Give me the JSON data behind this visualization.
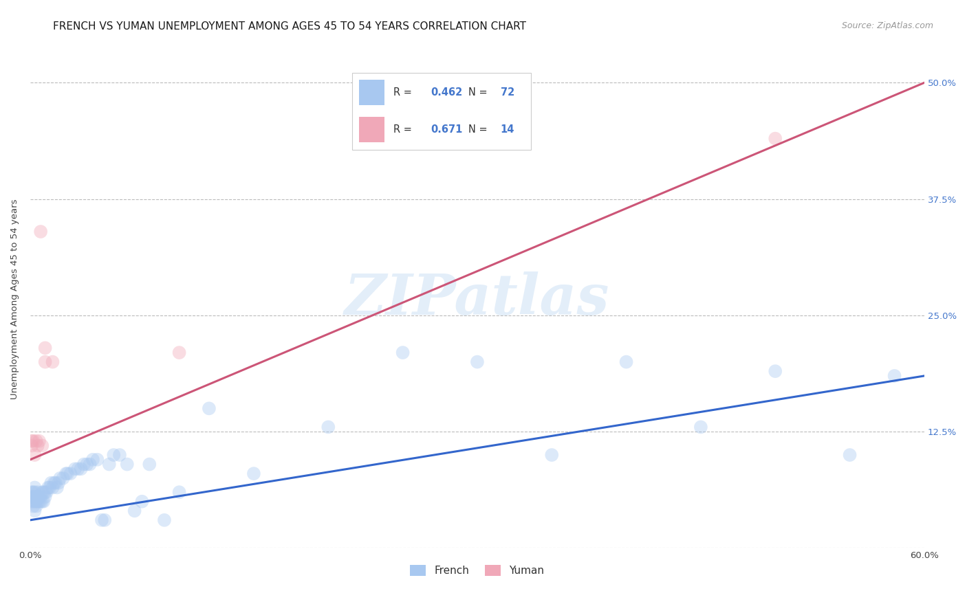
{
  "title": "FRENCH VS YUMAN UNEMPLOYMENT AMONG AGES 45 TO 54 YEARS CORRELATION CHART",
  "source": "Source: ZipAtlas.com",
  "ylabel": "Unemployment Among Ages 45 to 54 years",
  "xlim": [
    0.0,
    0.6
  ],
  "ylim": [
    0.0,
    0.535
  ],
  "xtick_positions": [
    0.0,
    0.12,
    0.24,
    0.36,
    0.48,
    0.6
  ],
  "xtick_labels": [
    "0.0%",
    "",
    "",
    "",
    "",
    "60.0%"
  ],
  "ytick_vals": [
    0.0,
    0.125,
    0.25,
    0.375,
    0.5
  ],
  "ytick_labels_right": [
    "",
    "12.5%",
    "25.0%",
    "37.5%",
    "50.0%"
  ],
  "grid_color": "#bbbbbb",
  "watermark_text": "ZIPatlas",
  "french_R": "0.462",
  "french_N": "72",
  "yuman_R": "0.671",
  "yuman_N": "14",
  "french_color": "#a8c8f0",
  "yuman_color": "#f0a8b8",
  "french_line_color": "#3366cc",
  "yuman_line_color": "#cc5577",
  "label_color": "#4477cc",
  "text_color": "#444444",
  "french_x": [
    0.001,
    0.001,
    0.001,
    0.002,
    0.002,
    0.002,
    0.002,
    0.003,
    0.003,
    0.003,
    0.003,
    0.003,
    0.004,
    0.004,
    0.004,
    0.005,
    0.005,
    0.005,
    0.006,
    0.006,
    0.007,
    0.007,
    0.008,
    0.008,
    0.009,
    0.009,
    0.01,
    0.01,
    0.011,
    0.012,
    0.013,
    0.014,
    0.015,
    0.016,
    0.017,
    0.018,
    0.019,
    0.02,
    0.022,
    0.024,
    0.025,
    0.027,
    0.03,
    0.032,
    0.034,
    0.036,
    0.038,
    0.04,
    0.042,
    0.045,
    0.048,
    0.05,
    0.053,
    0.056,
    0.06,
    0.065,
    0.07,
    0.075,
    0.08,
    0.09,
    0.1,
    0.12,
    0.15,
    0.2,
    0.25,
    0.3,
    0.35,
    0.4,
    0.45,
    0.5,
    0.55,
    0.58
  ],
  "french_y": [
    0.05,
    0.055,
    0.06,
    0.045,
    0.05,
    0.055,
    0.06,
    0.04,
    0.05,
    0.055,
    0.06,
    0.065,
    0.045,
    0.05,
    0.055,
    0.05,
    0.055,
    0.06,
    0.05,
    0.055,
    0.05,
    0.055,
    0.05,
    0.06,
    0.05,
    0.06,
    0.055,
    0.06,
    0.06,
    0.065,
    0.065,
    0.07,
    0.065,
    0.07,
    0.07,
    0.065,
    0.07,
    0.075,
    0.075,
    0.08,
    0.08,
    0.08,
    0.085,
    0.085,
    0.085,
    0.09,
    0.09,
    0.09,
    0.095,
    0.095,
    0.03,
    0.03,
    0.09,
    0.1,
    0.1,
    0.09,
    0.04,
    0.05,
    0.09,
    0.03,
    0.06,
    0.15,
    0.08,
    0.13,
    0.21,
    0.2,
    0.1,
    0.2,
    0.13,
    0.19,
    0.1,
    0.185
  ],
  "yuman_x": [
    0.001,
    0.001,
    0.002,
    0.003,
    0.004,
    0.005,
    0.006,
    0.007,
    0.008,
    0.01,
    0.01,
    0.015,
    0.1,
    0.5
  ],
  "yuman_y": [
    0.11,
    0.115,
    0.115,
    0.1,
    0.115,
    0.11,
    0.115,
    0.34,
    0.11,
    0.2,
    0.215,
    0.2,
    0.21,
    0.44
  ],
  "french_trendline": [
    [
      0.0,
      0.6
    ],
    [
      0.03,
      0.185
    ]
  ],
  "yuman_trendline": [
    [
      0.0,
      0.6
    ],
    [
      0.095,
      0.5
    ]
  ],
  "marker_size": 200,
  "marker_alpha": 0.4,
  "background_color": "#ffffff",
  "title_fontsize": 11,
  "axis_label_fontsize": 9.5,
  "tick_fontsize": 9.5,
  "legend_fontsize": 10.5,
  "source_fontsize": 9
}
